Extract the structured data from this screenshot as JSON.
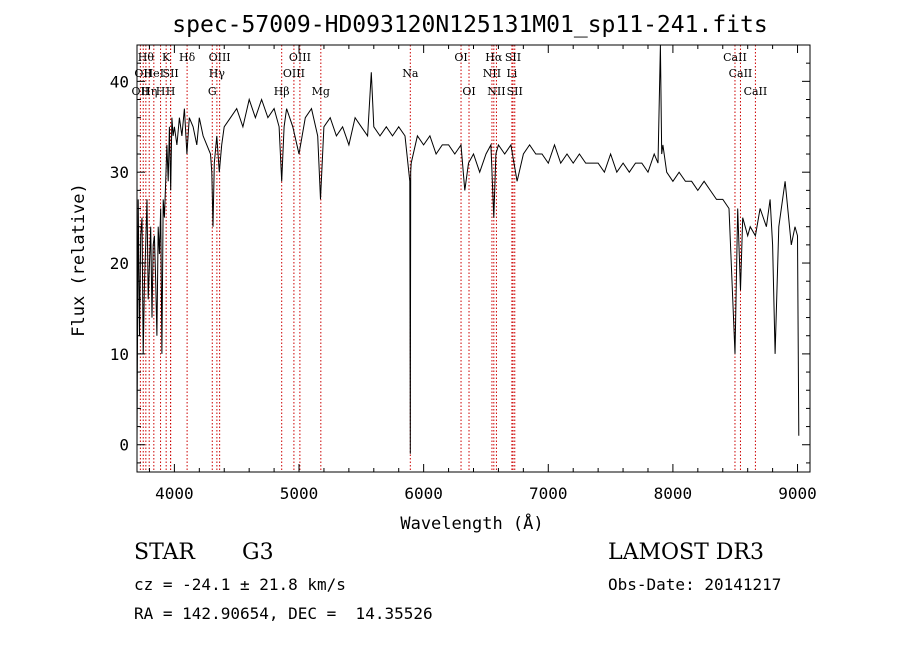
{
  "chart_data": {
    "type": "line",
    "title": "spec-57009-HD093120N125131M01_sp11-241.fits",
    "xlabel": "Wavelength (Å)",
    "ylabel": "Flux (relative)",
    "xlim": [
      3700,
      9100
    ],
    "ylim": [
      -3,
      44
    ],
    "xticks": [
      4000,
      5000,
      6000,
      7000,
      8000,
      9000
    ],
    "yticks": [
      0,
      10,
      20,
      30,
      40
    ],
    "series": [
      {
        "name": "flux",
        "x": [
          3700,
          3710,
          3720,
          3730,
          3740,
          3750,
          3760,
          3770,
          3780,
          3790,
          3800,
          3810,
          3820,
          3830,
          3840,
          3850,
          3860,
          3870,
          3880,
          3890,
          3900,
          3910,
          3920,
          3930,
          3940,
          3950,
          3960,
          3970,
          3980,
          3990,
          4000,
          4020,
          4040,
          4060,
          4080,
          4100,
          4120,
          4150,
          4180,
          4200,
          4230,
          4260,
          4290,
          4300,
          4310,
          4320,
          4340,
          4360,
          4380,
          4400,
          4450,
          4500,
          4550,
          4600,
          4650,
          4700,
          4750,
          4800,
          4840,
          4861,
          4880,
          4900,
          4950,
          5000,
          5050,
          5100,
          5150,
          5172,
          5200,
          5250,
          5300,
          5350,
          5400,
          5450,
          5500,
          5550,
          5580,
          5600,
          5650,
          5700,
          5750,
          5800,
          5850,
          5889,
          5893,
          5896,
          5900,
          5950,
          6000,
          6050,
          6100,
          6150,
          6200,
          6250,
          6300,
          6330,
          6360,
          6400,
          6450,
          6500,
          6540,
          6563,
          6580,
          6600,
          6650,
          6700,
          6750,
          6800,
          6850,
          6900,
          6950,
          7000,
          7050,
          7100,
          7150,
          7200,
          7250,
          7300,
          7350,
          7400,
          7450,
          7500,
          7550,
          7600,
          7650,
          7700,
          7750,
          7800,
          7850,
          7880,
          7900,
          7910,
          7920,
          7950,
          8000,
          8050,
          8100,
          8150,
          8200,
          8250,
          8300,
          8350,
          8400,
          8450,
          8498,
          8520,
          8542,
          8560,
          8600,
          8620,
          8662,
          8700,
          8750,
          8780,
          8800,
          8820,
          8850,
          8900,
          8950,
          8980,
          9000,
          9010
        ],
        "y": [
          0,
          27,
          12,
          23,
          25,
          10,
          18,
          22,
          27,
          16,
          20,
          24,
          14,
          22,
          23,
          18,
          12,
          24,
          21,
          26,
          10,
          27,
          25,
          29,
          33,
          29,
          35,
          28,
          36,
          34,
          35,
          33,
          36,
          34,
          37,
          32,
          36,
          35,
          33,
          36,
          34,
          33,
          32,
          30,
          24,
          31,
          34,
          30,
          33,
          35,
          36,
          37,
          35,
          38,
          36,
          38,
          36,
          37,
          35,
          29,
          35,
          37,
          35,
          32,
          36,
          37,
          34,
          27,
          35,
          36,
          34,
          35,
          33,
          36,
          35,
          34,
          41,
          35,
          34,
          35,
          34,
          35,
          34,
          29,
          -1,
          30,
          31,
          34,
          33,
          34,
          32,
          33,
          33,
          32,
          33,
          28,
          31,
          32,
          30,
          32,
          33,
          25,
          32,
          33,
          32,
          33,
          29,
          32,
          33,
          32,
          32,
          31,
          33,
          31,
          32,
          31,
          32,
          31,
          31,
          31,
          30,
          32,
          30,
          31,
          30,
          31,
          31,
          30,
          32,
          31,
          44,
          32,
          33,
          30,
          29,
          30,
          29,
          29,
          28,
          29,
          28,
          27,
          27,
          26,
          10,
          26,
          17,
          25,
          23,
          24,
          23,
          26,
          24,
          27,
          22,
          10,
          24,
          29,
          22,
          24,
          23,
          1
        ]
      }
    ],
    "lines": [
      {
        "wavelength": 3727,
        "label": "OII",
        "row": 2
      },
      {
        "wavelength": 3750,
        "label": "OII",
        "row": 1
      },
      {
        "wavelength": 3771,
        "label": "Hθ",
        "row": 0
      },
      {
        "wavelength": 3798,
        "label": "Hη",
        "row": 2
      },
      {
        "wavelength": 3835,
        "label": "HeI",
        "row": 1
      },
      {
        "wavelength": 3889,
        "label": "H",
        "row": 2
      },
      {
        "wavelength": 3934,
        "label": "K",
        "row": 0
      },
      {
        "wavelength": 3969,
        "label": "H",
        "row": 2
      },
      {
        "wavelength": 3970,
        "label": "SII",
        "row": 1
      },
      {
        "wavelength": 4102,
        "label": "Hδ",
        "row": 0
      },
      {
        "wavelength": 4304,
        "label": "G",
        "row": 2
      },
      {
        "wavelength": 4341,
        "label": "Hγ",
        "row": 1
      },
      {
        "wavelength": 4363,
        "label": "OIII",
        "row": 0
      },
      {
        "wavelength": 4861,
        "label": "Hβ",
        "row": 2
      },
      {
        "wavelength": 4959,
        "label": "OIII",
        "row": 1
      },
      {
        "wavelength": 5007,
        "label": "OIII",
        "row": 0
      },
      {
        "wavelength": 5175,
        "label": "Mg",
        "row": 2
      },
      {
        "wavelength": 5893,
        "label": "Na",
        "row": 1
      },
      {
        "wavelength": 6300,
        "label": "OI",
        "row": 0
      },
      {
        "wavelength": 6364,
        "label": "OI",
        "row": 2
      },
      {
        "wavelength": 6548,
        "label": "NII",
        "row": 1
      },
      {
        "wavelength": 6563,
        "label": "Hα",
        "row": 0
      },
      {
        "wavelength": 6584,
        "label": "NII",
        "row": 2
      },
      {
        "wavelength": 6708,
        "label": "Li",
        "row": 1
      },
      {
        "wavelength": 6717,
        "label": "SII",
        "row": 0
      },
      {
        "wavelength": 6731,
        "label": "SII",
        "row": 2
      },
      {
        "wavelength": 8498,
        "label": "CaII",
        "row": 0
      },
      {
        "wavelength": 8542,
        "label": "CaII",
        "row": 1
      },
      {
        "wavelength": 8662,
        "label": "CaII",
        "row": 2
      }
    ]
  },
  "info": {
    "class": "STAR",
    "subclass": "G3",
    "survey": "LAMOST DR3",
    "cz": "cz = -24.1 ± 21.8 km/s",
    "obs_date": "Obs-Date: 20141217",
    "radec": "RA = 142.90654, DEC =  14.35526"
  },
  "colors": {
    "line_marker": "#cc0000",
    "spectrum": "#000000"
  }
}
